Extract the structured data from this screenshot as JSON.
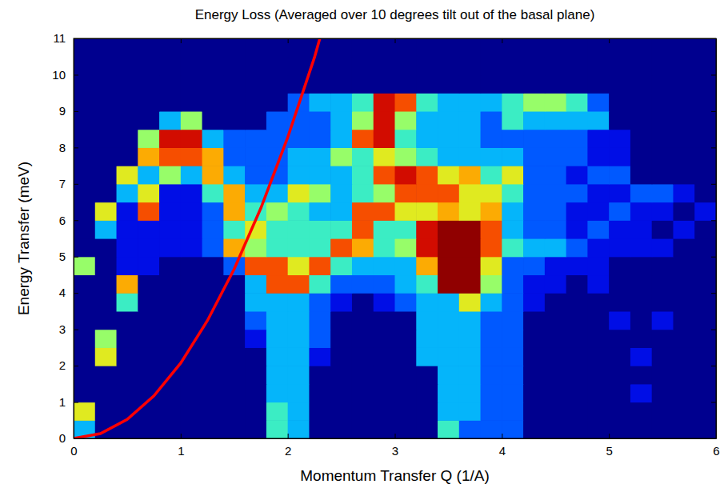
{
  "chart_data": {
    "type": "heatmap",
    "title": "Energy Loss (Averaged over 10 degrees tilt out of the basal plane)",
    "x_label": "Momentum Transfer Q (1/A)",
    "y_label": "Energy Transfer (meV)",
    "xlim": [
      0,
      6
    ],
    "ylim": [
      0,
      11
    ],
    "xticks": [
      0,
      1,
      2,
      3,
      4,
      5,
      6
    ],
    "yticks": [
      0,
      1,
      2,
      3,
      4,
      5,
      6,
      7,
      8,
      9,
      10,
      11
    ],
    "x": [
      0.1,
      0.3,
      0.5,
      0.7,
      0.9,
      1.1,
      1.3,
      1.5,
      1.7,
      1.9,
      2.1,
      2.3,
      2.5,
      2.7,
      2.9,
      3.1,
      3.3,
      3.5,
      3.7,
      3.9,
      4.1,
      4.3,
      4.5,
      4.7,
      4.9,
      5.1,
      5.3,
      5.5,
      5.7,
      5.9
    ],
    "y": [
      0.25,
      0.75,
      1.25,
      1.75,
      2.25,
      2.75,
      3.25,
      3.75,
      4.25,
      4.75,
      5.25,
      5.75,
      6.25,
      6.75,
      7.25,
      7.75,
      8.25,
      8.75,
      9.25,
      9.75,
      10.25,
      10.75
    ],
    "zlim": [
      0,
      10
    ],
    "z": [
      [
        3,
        0,
        0,
        0,
        0,
        0,
        0,
        0,
        0,
        4,
        3,
        0,
        0,
        0,
        0,
        0,
        0,
        4,
        2,
        2,
        2,
        0,
        0,
        0,
        0,
        0,
        0,
        0,
        0,
        0
      ],
      [
        6,
        0,
        0,
        0,
        0,
        0,
        0,
        0,
        0,
        4,
        3,
        0,
        0,
        0,
        0,
        0,
        0,
        3,
        3,
        2,
        2,
        0,
        0,
        0,
        0,
        0,
        0,
        0,
        0,
        0
      ],
      [
        0,
        0,
        0,
        0,
        0,
        0,
        0,
        0,
        0,
        3,
        3,
        0,
        0,
        0,
        0,
        0,
        0,
        3,
        3,
        2,
        2,
        0,
        0,
        0,
        0,
        0,
        1,
        0,
        0,
        0
      ],
      [
        0,
        0,
        0,
        0,
        0,
        0,
        0,
        0,
        0,
        3,
        3,
        0,
        0,
        0,
        0,
        0,
        0,
        3,
        3,
        2,
        2,
        0,
        0,
        0,
        0,
        0,
        0,
        0,
        0,
        0
      ],
      [
        0,
        6,
        0,
        0,
        0,
        0,
        0,
        0,
        0,
        3,
        3,
        1,
        0,
        0,
        0,
        0,
        3,
        3,
        3,
        2,
        2,
        0,
        0,
        0,
        0,
        0,
        1,
        0,
        0,
        0
      ],
      [
        0,
        5,
        0,
        0,
        0,
        0,
        0,
        0,
        1,
        3,
        3,
        2,
        0,
        0,
        0,
        0,
        3,
        3,
        3,
        2,
        2,
        0,
        0,
        0,
        0,
        0,
        0,
        0,
        0,
        0
      ],
      [
        0,
        0,
        0,
        0,
        0,
        0,
        0,
        0,
        2,
        3,
        3,
        2,
        0,
        0,
        0,
        0,
        3,
        3,
        3,
        2,
        2,
        0,
        0,
        0,
        0,
        1,
        0,
        1,
        0,
        0
      ],
      [
        0,
        0,
        4,
        0,
        0,
        0,
        0,
        0,
        3,
        3,
        3,
        2,
        1,
        0,
        1,
        2,
        3,
        3,
        6,
        3,
        2,
        1,
        0,
        0,
        0,
        0,
        0,
        0,
        0,
        0
      ],
      [
        0,
        0,
        7,
        0,
        0,
        0,
        0,
        0,
        3,
        8,
        8,
        4,
        2,
        2,
        2,
        3,
        4,
        10,
        10,
        5,
        2,
        1,
        1,
        0,
        1,
        0,
        0,
        0,
        0,
        0
      ],
      [
        5,
        0,
        1,
        1,
        0,
        0,
        0,
        2,
        8,
        8,
        6,
        8,
        4,
        3,
        3,
        3,
        7,
        10,
        10,
        6,
        2,
        2,
        1,
        1,
        1,
        0,
        0,
        0,
        0,
        0
      ],
      [
        0,
        0,
        1,
        1,
        1,
        1,
        2,
        7,
        5,
        4,
        4,
        4,
        8,
        7,
        4,
        5,
        9,
        10,
        10,
        8,
        4,
        3,
        3,
        2,
        1,
        1,
        1,
        1,
        0,
        0
      ],
      [
        0,
        3,
        1,
        1,
        1,
        1,
        2,
        4,
        6,
        4,
        4,
        4,
        4,
        8,
        4,
        4,
        9,
        10,
        10,
        8,
        3,
        2,
        2,
        1,
        2,
        1,
        1,
        0,
        1,
        0
      ],
      [
        0,
        6,
        1,
        8,
        1,
        1,
        2,
        7,
        4,
        5,
        4,
        3,
        3,
        8,
        8,
        6,
        6,
        7,
        6,
        7,
        3,
        2,
        2,
        1,
        1,
        2,
        1,
        1,
        0,
        1
      ],
      [
        0,
        0,
        3,
        6,
        1,
        1,
        4,
        7,
        3,
        3,
        6,
        5,
        3,
        4,
        5,
        8,
        8,
        8,
        6,
        6,
        4,
        2,
        2,
        2,
        1,
        1,
        2,
        2,
        1,
        0
      ],
      [
        0,
        0,
        6,
        3,
        5,
        3,
        7,
        3,
        2,
        2,
        3,
        3,
        3,
        4,
        8,
        9,
        8,
        6,
        7,
        4,
        6,
        2,
        2,
        1,
        2,
        2,
        0,
        0,
        0,
        0
      ],
      [
        0,
        0,
        0,
        7,
        8,
        8,
        7,
        2,
        2,
        2,
        3,
        3,
        5,
        4,
        6,
        5,
        4,
        3,
        3,
        3,
        3,
        2,
        2,
        2,
        1,
        1,
        0,
        0,
        0,
        0
      ],
      [
        0,
        0,
        0,
        5,
        9,
        9,
        3,
        2,
        2,
        2,
        2,
        2,
        3,
        8,
        9,
        4,
        3,
        3,
        3,
        2,
        2,
        2,
        2,
        2,
        1,
        1,
        0,
        0,
        0,
        0
      ],
      [
        0,
        0,
        0,
        0,
        3,
        5,
        0,
        0,
        0,
        2,
        2,
        2,
        3,
        5,
        9,
        5,
        3,
        3,
        3,
        2,
        4,
        3,
        3,
        3,
        3,
        0,
        0,
        0,
        0,
        0
      ],
      [
        0,
        0,
        0,
        0,
        0,
        0,
        0,
        0,
        0,
        0,
        2,
        3,
        3,
        4,
        9,
        8,
        4,
        3,
        3,
        3,
        4,
        5,
        5,
        4,
        2,
        0,
        0,
        0,
        0,
        0
      ],
      [
        0,
        0,
        0,
        0,
        0,
        0,
        0,
        0,
        0,
        0,
        0,
        0,
        0,
        0,
        0,
        0,
        0,
        0,
        0,
        0,
        0,
        0,
        0,
        0,
        0,
        0,
        0,
        0,
        0,
        0
      ],
      [
        0,
        0,
        0,
        0,
        0,
        0,
        0,
        0,
        0,
        0,
        0,
        0,
        0,
        0,
        0,
        0,
        0,
        0,
        0,
        0,
        0,
        0,
        0,
        0,
        0,
        0,
        0,
        0,
        0,
        0
      ],
      [
        0,
        0,
        0,
        0,
        0,
        0,
        0,
        0,
        0,
        0,
        0,
        0,
        0,
        0,
        0,
        0,
        0,
        0,
        0,
        0,
        0,
        0,
        0,
        0,
        0,
        0,
        0,
        0,
        0,
        0
      ]
    ],
    "series": [
      {
        "type": "line",
        "color": "#ff0000",
        "x": [
          0,
          0.25,
          0.5,
          0.75,
          1,
          1.25,
          1.5,
          1.75,
          2,
          2.25,
          2.3
        ],
        "values": [
          0,
          0.13,
          0.52,
          1.17,
          2.07,
          3.24,
          4.66,
          6.34,
          8.28,
          10.48,
          11
        ]
      }
    ]
  }
}
